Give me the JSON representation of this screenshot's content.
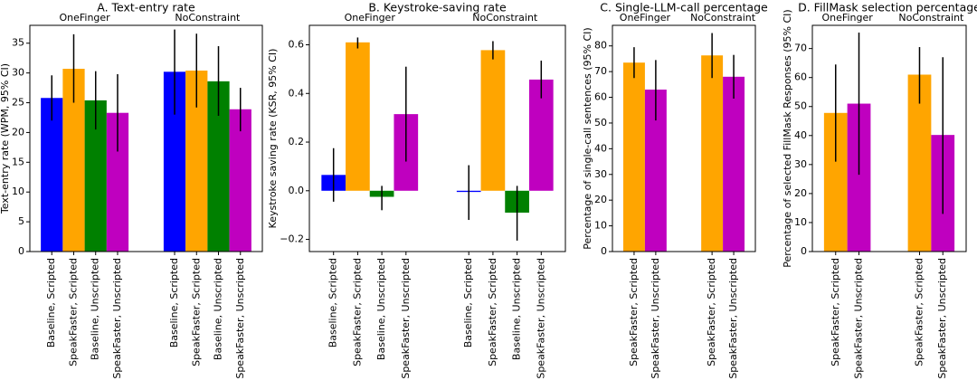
{
  "chart_data": [
    {
      "type": "bar",
      "title": "A. Text-entry rate",
      "y_label": "Text-entry rate (WPM, 95% CI)",
      "ylim": [
        0,
        38
      ],
      "yticks": [
        0,
        5,
        10,
        15,
        20,
        25,
        30,
        35
      ],
      "groups": [
        {
          "name": "OneFinger",
          "categories": [
            "Baseline, Scripted",
            "SpeakFaster, Scripted",
            "Baseline, Unscripted",
            "SpeakFaster, Unscripted"
          ],
          "colors": [
            "#0000ff",
            "#ffa500",
            "#008000",
            "#bf00bf"
          ],
          "values": [
            25.8,
            30.7,
            25.4,
            23.3
          ],
          "ci_low": [
            22,
            25,
            20.5,
            16.8
          ],
          "ci_high": [
            29.6,
            36.5,
            30.3,
            29.8
          ]
        },
        {
          "name": "NoConstraint",
          "categories": [
            "Baseline, Scripted",
            "SpeakFaster, Scripted",
            "Baseline, Unscripted",
            "SpeakFaster, Unscripted"
          ],
          "colors": [
            "#0000ff",
            "#ffa500",
            "#008000",
            "#bf00bf"
          ],
          "values": [
            30.2,
            30.4,
            28.6,
            23.9
          ],
          "ci_low": [
            23,
            24.2,
            22.8,
            20.2
          ],
          "ci_high": [
            37.3,
            36.6,
            34.5,
            27.5
          ]
        }
      ]
    },
    {
      "type": "bar",
      "title": "B. Keystroke-saving rate",
      "y_label": "Keystroke saving rate (KSR, 95% CI)",
      "ylim": [
        -0.25,
        0.68
      ],
      "yticks": [
        {
          "value": -0.2,
          "label": "−0.2"
        },
        {
          "value": 0,
          "label": "0.0"
        },
        {
          "value": 0.2,
          "label": "0.2"
        },
        {
          "value": 0.4,
          "label": "0.4"
        },
        {
          "value": 0.6,
          "label": "0.6"
        }
      ],
      "groups": [
        {
          "name": "OneFinger",
          "categories": [
            "Baseline, Scripted",
            "SpeakFaster, Scripted",
            "Baseline, Unscripted",
            "SpeakFaster, Unscripted"
          ],
          "colors": [
            "#0000ff",
            "#ffa500",
            "#008000",
            "#bf00bf"
          ],
          "values": [
            0.065,
            0.61,
            -0.025,
            0.315
          ],
          "ci_low": [
            -0.045,
            0.585,
            -0.08,
            0.12
          ],
          "ci_high": [
            0.175,
            0.63,
            0.02,
            0.51
          ]
        },
        {
          "name": "NoConstraint",
          "categories": [
            "Baseline, Scripted",
            "SpeakFaster, Scripted",
            "Baseline, Unscripted",
            "SpeakFaster, Unscripted"
          ],
          "colors": [
            "#0000ff",
            "#ffa500",
            "#008000",
            "#bf00bf"
          ],
          "values": [
            -0.005,
            0.578,
            -0.09,
            0.457
          ],
          "ci_low": [
            -0.12,
            0.54,
            -0.205,
            0.38
          ],
          "ci_high": [
            0.105,
            0.615,
            0.02,
            0.535
          ]
        }
      ]
    },
    {
      "type": "bar",
      "title": "C. Single-LLM-call percentage",
      "y_label": "Percentage of single-call sentences (95% CI)",
      "ylim": [
        0,
        88
      ],
      "yticks": [
        0,
        10,
        20,
        30,
        40,
        50,
        60,
        70,
        80
      ],
      "groups": [
        {
          "name": "OneFinger",
          "categories": [
            "SpeakFaster, Scripted",
            "SpeakFaster, Unscripted"
          ],
          "colors": [
            "#ffa500",
            "#bf00bf"
          ],
          "values": [
            73.5,
            63
          ],
          "ci_low": [
            67.5,
            51
          ],
          "ci_high": [
            79.5,
            74.5
          ]
        },
        {
          "name": "NoConstraint",
          "categories": [
            "SpeakFaster, Scripted",
            "SpeakFaster, Unscripted"
          ],
          "colors": [
            "#ffa500",
            "#bf00bf"
          ],
          "values": [
            76.3,
            68
          ],
          "ci_low": [
            67.5,
            59.5
          ],
          "ci_high": [
            85,
            76.5
          ]
        }
      ]
    },
    {
      "type": "bar",
      "title": "D. FillMask selection percentage",
      "y_label": "Percentage of selected FillMask Responses (95% CI)",
      "ylim": [
        0,
        78
      ],
      "yticks": [
        0,
        10,
        20,
        30,
        40,
        50,
        60,
        70
      ],
      "groups": [
        {
          "name": "OneFinger",
          "categories": [
            "SpeakFaster, Scripted",
            "SpeakFaster, Unscripted"
          ],
          "colors": [
            "#ffa500",
            "#bf00bf"
          ],
          "values": [
            47.8,
            51
          ],
          "ci_low": [
            31,
            26.5
          ],
          "ci_high": [
            64.5,
            75.5
          ]
        },
        {
          "name": "NoConstraint",
          "categories": [
            "SpeakFaster, Scripted",
            "SpeakFaster, Unscripted"
          ],
          "colors": [
            "#ffa500",
            "#bf00bf"
          ],
          "values": [
            61,
            40.2
          ],
          "ci_low": [
            51,
            13
          ],
          "ci_high": [
            70.5,
            67
          ]
        }
      ]
    }
  ]
}
